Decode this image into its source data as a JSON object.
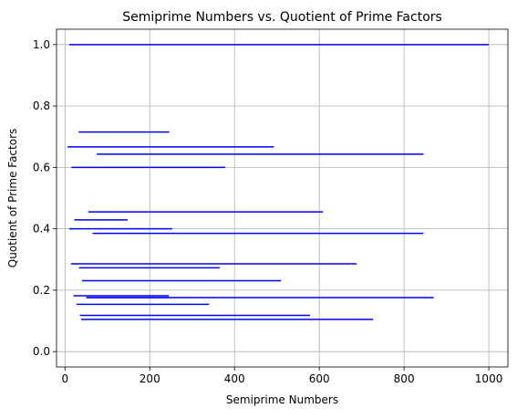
{
  "chart_data": {
    "type": "line",
    "title": "Semiprime Numbers vs. Quotient of Prime Factors",
    "xlabel": "Semiprime Numbers",
    "ylabel": "Quotient of Prime Factors",
    "xlim": [
      -20,
      1045
    ],
    "ylim": [
      -0.05,
      1.05
    ],
    "xticks": [
      0,
      200,
      400,
      600,
      800,
      1000
    ],
    "yticks": [
      0.0,
      0.2,
      0.4,
      0.6,
      0.8,
      1.0
    ],
    "grid": true,
    "line_color": "#0000ff",
    "segments": [
      {
        "x": [
          10,
          1000
        ],
        "y": 1.0
      },
      {
        "x": [
          32,
          246
        ],
        "y": 0.715
      },
      {
        "x": [
          6,
          493
        ],
        "y": 0.667
      },
      {
        "x": [
          75,
          846
        ],
        "y": 0.643
      },
      {
        "x": [
          15,
          378
        ],
        "y": 0.6
      },
      {
        "x": [
          55,
          609
        ],
        "y": 0.455
      },
      {
        "x": [
          22,
          148
        ],
        "y": 0.429
      },
      {
        "x": [
          10,
          253
        ],
        "y": 0.4
      },
      {
        "x": [
          65,
          846
        ],
        "y": 0.385
      },
      {
        "x": [
          14,
          688
        ],
        "y": 0.286
      },
      {
        "x": [
          33,
          365
        ],
        "y": 0.273
      },
      {
        "x": [
          40,
          510
        ],
        "y": 0.231
      },
      {
        "x": [
          20,
          245
        ],
        "y": 0.182
      },
      {
        "x": [
          50,
          870
        ],
        "y": 0.176
      },
      {
        "x": [
          52,
          245
        ],
        "y": 0.176
      },
      {
        "x": [
          27,
          340
        ],
        "y": 0.154
      },
      {
        "x": [
          35,
          578
        ],
        "y": 0.118
      },
      {
        "x": [
          38,
          727
        ],
        "y": 0.105
      }
    ]
  }
}
